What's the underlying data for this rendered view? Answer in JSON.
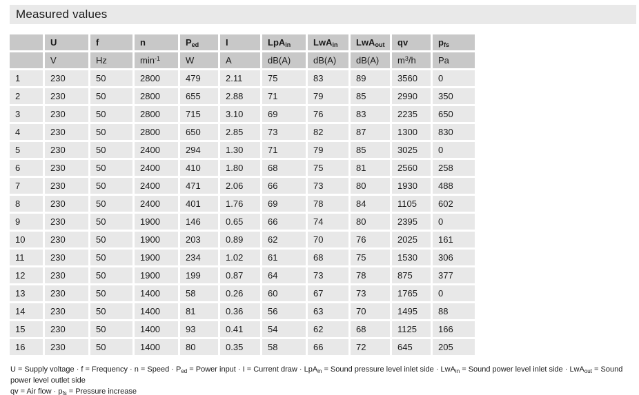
{
  "page_title": "Measured values",
  "colors": {
    "title_bar_bg": "#e9e9e9",
    "header_cell_bg": "#c8c8c8",
    "body_cell_bg": "#e8e8e8",
    "text": "#1a1a1a",
    "page_bg": "#ffffff"
  },
  "table": {
    "columns": [
      {
        "label": [],
        "unit": []
      },
      {
        "label": [
          {
            "t": "U"
          }
        ],
        "unit": [
          {
            "t": "V"
          }
        ]
      },
      {
        "label": [
          {
            "t": "f"
          }
        ],
        "unit": [
          {
            "t": "Hz"
          }
        ]
      },
      {
        "label": [
          {
            "t": "n"
          }
        ],
        "unit": [
          {
            "t": "min"
          },
          {
            "sup": "-1"
          }
        ]
      },
      {
        "label": [
          {
            "t": "P"
          },
          {
            "sub": "ed"
          }
        ],
        "unit": [
          {
            "t": "W"
          }
        ]
      },
      {
        "label": [
          {
            "t": "I"
          }
        ],
        "unit": [
          {
            "t": "A"
          }
        ]
      },
      {
        "label": [
          {
            "t": "LpA"
          },
          {
            "sub": "in"
          }
        ],
        "unit": [
          {
            "t": "dB(A)"
          }
        ]
      },
      {
        "label": [
          {
            "t": "LwA"
          },
          {
            "sub": "in"
          }
        ],
        "unit": [
          {
            "t": "dB(A)"
          }
        ]
      },
      {
        "label": [
          {
            "t": "LwA"
          },
          {
            "sub": "out"
          }
        ],
        "unit": [
          {
            "t": "dB(A)"
          }
        ]
      },
      {
        "label": [
          {
            "t": "qv"
          }
        ],
        "unit": [
          {
            "t": "m"
          },
          {
            "sup": "3"
          },
          {
            "t": "/h"
          }
        ]
      },
      {
        "label": [
          {
            "t": "p"
          },
          {
            "sub": "fs"
          }
        ],
        "unit": [
          {
            "t": "Pa"
          }
        ]
      }
    ],
    "rows": [
      [
        "1",
        "230",
        "50",
        "2800",
        "479",
        "2.11",
        "75",
        "83",
        "89",
        "3560",
        "0"
      ],
      [
        "2",
        "230",
        "50",
        "2800",
        "655",
        "2.88",
        "71",
        "79",
        "85",
        "2990",
        "350"
      ],
      [
        "3",
        "230",
        "50",
        "2800",
        "715",
        "3.10",
        "69",
        "76",
        "83",
        "2235",
        "650"
      ],
      [
        "4",
        "230",
        "50",
        "2800",
        "650",
        "2.85",
        "73",
        "82",
        "87",
        "1300",
        "830"
      ],
      [
        "5",
        "230",
        "50",
        "2400",
        "294",
        "1.30",
        "71",
        "79",
        "85",
        "3025",
        "0"
      ],
      [
        "6",
        "230",
        "50",
        "2400",
        "410",
        "1.80",
        "68",
        "75",
        "81",
        "2560",
        "258"
      ],
      [
        "7",
        "230",
        "50",
        "2400",
        "471",
        "2.06",
        "66",
        "73",
        "80",
        "1930",
        "488"
      ],
      [
        "8",
        "230",
        "50",
        "2400",
        "401",
        "1.76",
        "69",
        "78",
        "84",
        "1105",
        "602"
      ],
      [
        "9",
        "230",
        "50",
        "1900",
        "146",
        "0.65",
        "66",
        "74",
        "80",
        "2395",
        "0"
      ],
      [
        "10",
        "230",
        "50",
        "1900",
        "203",
        "0.89",
        "62",
        "70",
        "76",
        "2025",
        "161"
      ],
      [
        "11",
        "230",
        "50",
        "1900",
        "234",
        "1.02",
        "61",
        "68",
        "75",
        "1530",
        "306"
      ],
      [
        "12",
        "230",
        "50",
        "1900",
        "199",
        "0.87",
        "64",
        "73",
        "78",
        "875",
        "377"
      ],
      [
        "13",
        "230",
        "50",
        "1400",
        "58",
        "0.26",
        "60",
        "67",
        "73",
        "1765",
        "0"
      ],
      [
        "14",
        "230",
        "50",
        "1400",
        "81",
        "0.36",
        "56",
        "63",
        "70",
        "1495",
        "88"
      ],
      [
        "15",
        "230",
        "50",
        "1400",
        "93",
        "0.41",
        "54",
        "62",
        "68",
        "1125",
        "166"
      ],
      [
        "16",
        "230",
        "50",
        "1400",
        "80",
        "0.35",
        "58",
        "66",
        "72",
        "645",
        "205"
      ]
    ]
  },
  "legend": {
    "line1": [
      {
        "t": "U = Supply voltage  · f = Frequency  · n = Speed  · P"
      },
      {
        "sub": "ed"
      },
      {
        "t": " = Power input  · I = Current draw  · LpA"
      },
      {
        "sub": "in"
      },
      {
        "t": " = Sound pressure level inlet side  · LwA"
      },
      {
        "sub": "in"
      },
      {
        "t": " = Sound power level inlet side  · LwA"
      },
      {
        "sub": "out"
      },
      {
        "t": " = Sound power level outlet side"
      }
    ],
    "line2": [
      {
        "t": "qv = Air flow  · p"
      },
      {
        "sub": "fs"
      },
      {
        "t": " = Pressure increase"
      }
    ]
  }
}
